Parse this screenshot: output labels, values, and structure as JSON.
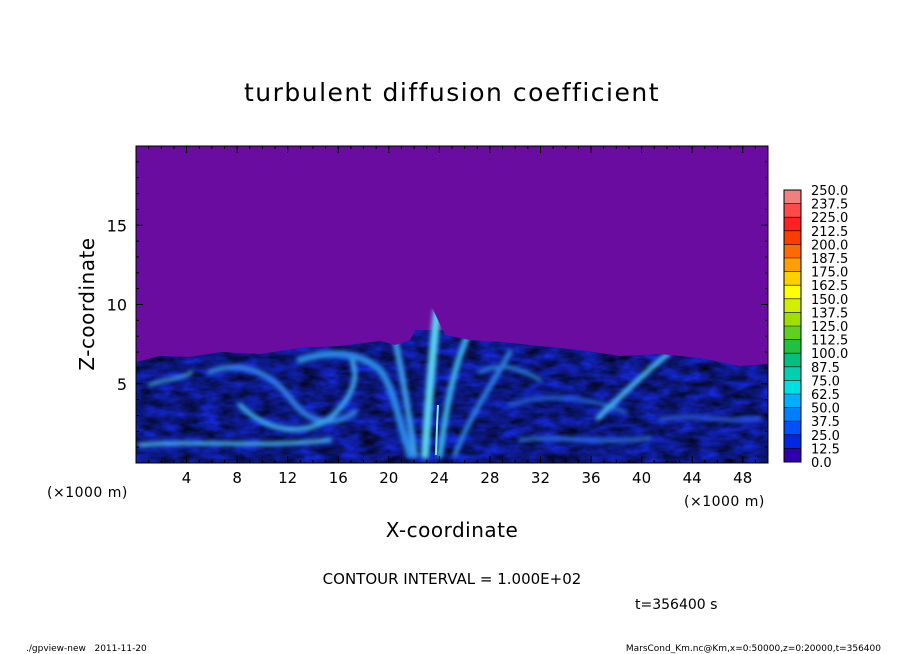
{
  "chart_data": {
    "type": "heatmap",
    "title": "turbulent diffusion coefficient",
    "xlabel": "X-coordinate",
    "ylabel": "Z-coordinate",
    "x_unit": "(×1000 m)",
    "y_unit": "(×1000 m)",
    "xlim": [
      0,
      50
    ],
    "ylim": [
      0,
      20
    ],
    "xticks": [
      4,
      8,
      12,
      16,
      20,
      24,
      28,
      32,
      36,
      40,
      44,
      48
    ],
    "yticks": [
      5,
      10,
      15
    ],
    "colorbar": {
      "levels": [
        "250.0",
        "237.5",
        "225.0",
        "212.5",
        "200.0",
        "187.5",
        "175.0",
        "162.5",
        "150.0",
        "137.5",
        "125.0",
        "112.5",
        "100.0",
        "87.5",
        "75.0",
        "62.5",
        "50.0",
        "37.5",
        "25.0",
        "12.5",
        "0.0"
      ],
      "colors": [
        "#f08080",
        "#ff4a4a",
        "#ff2020",
        "#ff3c00",
        "#ff6a00",
        "#ffa000",
        "#ffd000",
        "#ffff00",
        "#d0f000",
        "#a0e000",
        "#60d020",
        "#20c040",
        "#00c080",
        "#00d0b0",
        "#00e0e0",
        "#00b0ff",
        "#0080ff",
        "#0050ff",
        "#0028e0",
        "#3000b0"
      ],
      "background_color": "#6a0ca0"
    },
    "contour_interval": "CONTOUR INTERVAL = 1.000E+02",
    "time": "t=356400 s",
    "footer_left": "./gpview-new   2011-11-20",
    "footer_right": "MarsCond_Km.nc@Km,x=0:50000,z=0:20000,t=356400"
  }
}
